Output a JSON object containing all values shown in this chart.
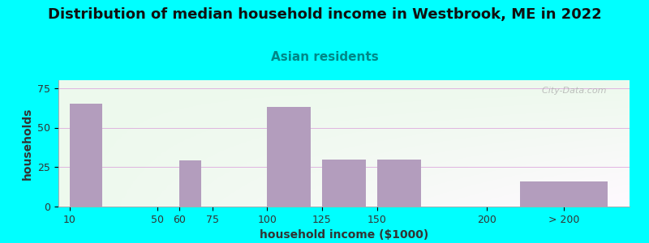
{
  "title": "Distribution of median household income in Westbrook, ME in 2022",
  "subtitle": "Asian residents",
  "xlabel": "household income ($1000)",
  "ylabel": "households",
  "bar_values": [
    65,
    0,
    29,
    0,
    63,
    30,
    30,
    0,
    16
  ],
  "bar_left_edges": [
    10,
    50,
    60,
    75,
    100,
    125,
    150,
    200,
    215
  ],
  "bar_widths": [
    15,
    5,
    10,
    15,
    20,
    20,
    20,
    10,
    40
  ],
  "bar_color": "#b39dbd",
  "background_color": "#00ffff",
  "title_fontsize": 13,
  "subtitle_fontsize": 11,
  "subtitle_color": "#008888",
  "axis_label_fontsize": 10,
  "tick_fontsize": 9,
  "ylim": [
    0,
    80
  ],
  "yticks": [
    0,
    25,
    50,
    75
  ],
  "xtick_labels": [
    "10",
    "50",
    "60",
    "75",
    "100",
    "125",
    "150",
    "200",
    "> 200"
  ],
  "xtick_positions": [
    10,
    50,
    60,
    75,
    100,
    125,
    150,
    200,
    235
  ],
  "xlim": [
    5,
    265
  ],
  "watermark": "  City-Data.com"
}
